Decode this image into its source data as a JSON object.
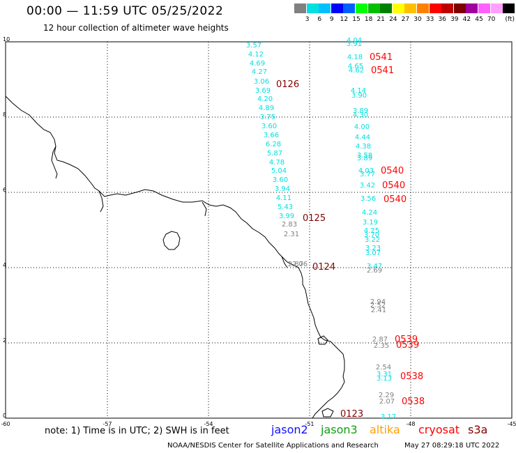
{
  "title": "00:00 — 11:59 UTC 05/25/2022",
  "subtitle": "12 hour collection of altimeter wave heights",
  "scale": {
    "unit": "(ft)",
    "colors": [
      "#808080",
      "#00e0e0",
      "#00c0ff",
      "#0000ff",
      "#0060ff",
      "#00ff00",
      "#00c000",
      "#008000",
      "#ffff00",
      "#ffc000",
      "#ff8000",
      "#ff0000",
      "#c00000",
      "#800000",
      "#a000a0",
      "#ff60ff",
      "#ffa0ff",
      "#000000"
    ],
    "labels": [
      "3",
      "6",
      "9",
      "12",
      "15",
      "18",
      "21",
      "24",
      "27",
      "30",
      "33",
      "36",
      "39",
      "42",
      "45",
      "70"
    ]
  },
  "axes": {
    "x_ticks": [
      "-60",
      "-57",
      "-54",
      "-51",
      "-48",
      "-45"
    ],
    "y_ticks": [
      "0",
      "2",
      "4",
      "6",
      "8",
      "10"
    ]
  },
  "note": "note: 1) Time is in UTC; 2) SWH is in feet",
  "satellites": [
    {
      "name": "jason2",
      "color": "#1010ff"
    },
    {
      "name": "jason3",
      "color": "#10a010"
    },
    {
      "name": "altika",
      "color": "#ffa000"
    },
    {
      "name": "cryosat",
      "color": "#ff0000"
    },
    {
      "name": "s3a",
      "color": "#800000"
    }
  ],
  "credit": "NOAA/NESDIS Center for Satellite Applications and Research",
  "timestamp": "May 27 08:29:18 UTC 2022",
  "passes": [
    {
      "label": "0126",
      "color": "#800000"
    },
    {
      "label": "0125",
      "color": "#800000"
    },
    {
      "label": "0124",
      "color": "#800000"
    },
    {
      "label": "0123",
      "color": "#800000"
    },
    {
      "label": "0541",
      "color": "#ff0000"
    },
    {
      "label": "0541",
      "color": "#ff0000"
    },
    {
      "label": "0540",
      "color": "#ff0000"
    },
    {
      "label": "0540",
      "color": "#ff0000"
    },
    {
      "label": "0540",
      "color": "#ff0000"
    },
    {
      "label": "0539",
      "color": "#ff0000"
    },
    {
      "label": "0539",
      "color": "#ff0000"
    },
    {
      "label": "0538",
      "color": "#ff0000"
    },
    {
      "label": "0538",
      "color": "#ff0000"
    }
  ],
  "track_a": [
    "3.57",
    "4.12",
    "4.69",
    "4.27",
    "3.06",
    "3.69",
    "4.20",
    "4.89",
    "3.75",
    "3.60",
    "3.66",
    "6.28",
    "5.87",
    "4.78",
    "5.04",
    "3.60",
    "3.94",
    "4.11",
    "5.43",
    "3.99",
    "2.83",
    "2.31",
    "2.87",
    "2.06"
  ],
  "track_b": [
    "4.04",
    "3.91",
    "4.18",
    "4.65",
    "4.62",
    "4.14",
    "3.90",
    "3.89",
    "4.30",
    "4.00",
    "4.44",
    "4.38",
    "3.58",
    "3.89",
    "4.03",
    "3.77",
    "3.42",
    "3.56",
    "4.24",
    "3.19",
    "4.25",
    "3.70",
    "3.22",
    "3.23",
    "3.07",
    "3.47",
    "2.69",
    "2.94",
    "2.52",
    "2.41",
    "2.87",
    "2.35",
    "2.54",
    "3.31",
    "3.13",
    "2.29",
    "2.07",
    "3.17"
  ]
}
